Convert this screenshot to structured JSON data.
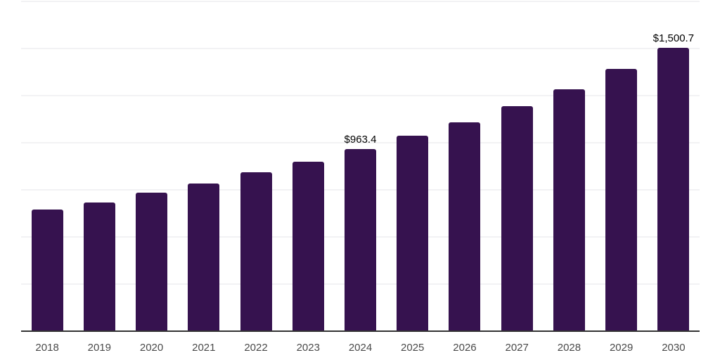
{
  "chart_data": {
    "type": "bar",
    "title": "",
    "xlabel": "",
    "ylabel": "",
    "categories": [
      "2018",
      "2019",
      "2020",
      "2021",
      "2022",
      "2023",
      "2024",
      "2025",
      "2026",
      "2027",
      "2028",
      "2029",
      "2030"
    ],
    "values": [
      641,
      680,
      731,
      780,
      839,
      896,
      963.4,
      1032,
      1106,
      1191,
      1280,
      1387,
      1500.7
    ],
    "data_labels": [
      "",
      "",
      "",
      "",
      "",
      "",
      "$963.4",
      "",
      "",
      "",
      "",
      "",
      "$1,500.7"
    ],
    "ylim": [
      0,
      1750
    ],
    "grid_step": 250,
    "grid": "horizontal",
    "legend": false,
    "y_axis_labels": false,
    "colors": {
      "bar": "#36124F",
      "grid": "#f2f2f4",
      "axis": "#333333",
      "tick_label": "#4a4a4a",
      "data_label": "#000000",
      "background": "#ffffff"
    }
  }
}
